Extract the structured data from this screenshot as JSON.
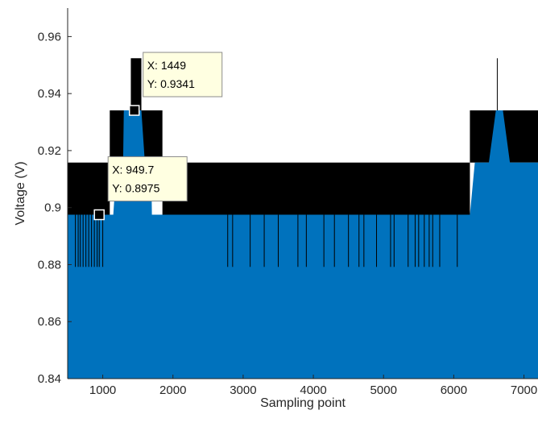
{
  "chart_data": {
    "type": "area",
    "xlabel": "Sampling point",
    "ylabel": "Voltage (V)",
    "xlim": [
      500,
      7200
    ],
    "ylim": [
      0.84,
      0.97
    ],
    "xticks": [
      1000,
      2000,
      3000,
      4000,
      5000,
      6000,
      7000
    ],
    "yticks": [
      0.84,
      0.86,
      0.88,
      0.9,
      0.92,
      0.94,
      0.96
    ],
    "ytick_labels": [
      "0.84",
      "0.86",
      "0.88",
      "0.9",
      "0.92",
      "0.94",
      "0.96"
    ],
    "grid": false,
    "colors": {
      "fill": "#0072BD",
      "noise": "#000000",
      "axis": "#262626",
      "tooltip_bg": "#FFFFE1"
    },
    "series": [
      {
        "type": "area",
        "baseline": 0.84,
        "x": [
          500,
          1150,
          1200,
          1290,
          1300,
          1400,
          1449,
          1550,
          1600,
          1690,
          1700,
          6230,
          6300,
          6500,
          6600,
          6700,
          6800,
          7200
        ],
        "y": [
          0.8975,
          0.8975,
          0.9158,
          0.9158,
          0.9341,
          0.9341,
          0.9341,
          0.9341,
          0.9158,
          0.9158,
          0.8975,
          0.8975,
          0.9158,
          0.9158,
          0.9341,
          0.9341,
          0.9158,
          0.9158
        ]
      },
      {
        "type": "noise-band",
        "segments": [
          {
            "x0": 500,
            "x1": 1100,
            "y0": 0.8975,
            "y1": 0.9158
          },
          {
            "x0": 1100,
            "x1": 1400,
            "y0": 0.9158,
            "y1": 0.9341
          },
          {
            "x0": 1400,
            "x1": 1550,
            "y0": 0.9341,
            "y1": 0.9524
          },
          {
            "x0": 1550,
            "x1": 1850,
            "y0": 0.9158,
            "y1": 0.9341
          },
          {
            "x0": 1850,
            "x1": 6230,
            "y0": 0.8975,
            "y1": 0.9158
          },
          {
            "x0": 6230,
            "x1": 7200,
            "y0": 0.9158,
            "y1": 0.9341
          }
        ],
        "spikes_up": [
          {
            "x": 6620,
            "y": 0.9524
          }
        ],
        "spikes_down_x": [
          610,
          650,
          680,
          720,
          760,
          800,
          840,
          880,
          920,
          950,
          1000,
          2780,
          2850,
          3100,
          3300,
          3500,
          3780,
          3900,
          4150,
          4300,
          4500,
          4650,
          4720,
          4900,
          5100,
          5150,
          5350,
          5450,
          5500,
          5580,
          5650,
          5700,
          5800,
          6050
        ],
        "spikes_down_bottom": 0.8792
      }
    ],
    "datatips": [
      {
        "label_x": "X: 949.7",
        "label_y": "Y: 0.8975",
        "x": 949.7,
        "y": 0.8975,
        "placement": "above-right"
      },
      {
        "label_x": "X: 1449",
        "label_y": "Y: 0.9341",
        "x": 1449,
        "y": 0.9341,
        "placement": "above-right"
      }
    ]
  }
}
